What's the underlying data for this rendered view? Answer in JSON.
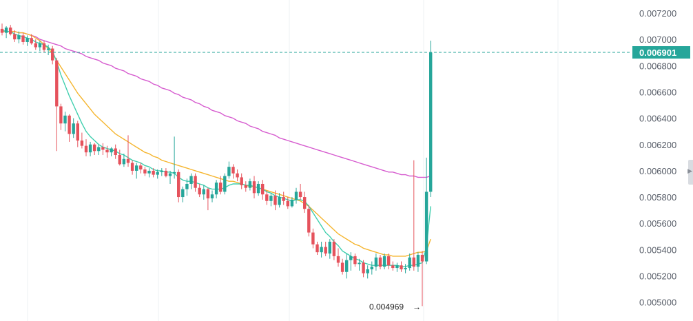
{
  "chart_data": {
    "type": "candlestick",
    "ylim": [
      0.00496,
      0.00724
    ],
    "y_ticks": [
      "0.007200",
      "0.007000",
      "0.006800",
      "0.006600",
      "0.006400",
      "0.006200",
      "0.006000",
      "0.005800",
      "0.005600",
      "0.005400",
      "0.005200",
      "0.005000"
    ],
    "last_price": "0.006901",
    "low_label": "0.004969",
    "low_value": 0.004969,
    "colors": {
      "up": "#26a69a",
      "down": "#e5525c",
      "tag": "#26a69a",
      "ma_fast": "#3fcfae",
      "ma_mid": "#f5b52e",
      "ma_slow": "#d65ccf",
      "grid": "#eef0f3"
    },
    "candles": [
      [
        0.00708,
        0.00712,
        0.00703,
        0.00705
      ],
      [
        0.00705,
        0.0071,
        0.00701,
        0.00709
      ],
      [
        0.00709,
        0.00711,
        0.00703,
        0.00704
      ],
      [
        0.00704,
        0.00707,
        0.00698,
        0.007
      ],
      [
        0.007,
        0.00706,
        0.00697,
        0.00703
      ],
      [
        0.00703,
        0.00705,
        0.00696,
        0.00698
      ],
      [
        0.00698,
        0.00703,
        0.00695,
        0.00701
      ],
      [
        0.00701,
        0.00704,
        0.00696,
        0.00697
      ],
      [
        0.00697,
        0.007,
        0.00692,
        0.00694
      ],
      [
        0.00694,
        0.00699,
        0.00691,
        0.00697
      ],
      [
        0.00697,
        0.00699,
        0.0069,
        0.00692
      ],
      [
        0.00692,
        0.00696,
        0.00688,
        0.00693
      ],
      [
        0.00693,
        0.00695,
        0.00681,
        0.00684
      ],
      [
        0.00684,
        0.00686,
        0.00615,
        0.00649
      ],
      [
        0.00649,
        0.00651,
        0.00631,
        0.00636
      ],
      [
        0.00636,
        0.00645,
        0.0063,
        0.00642
      ],
      [
        0.00642,
        0.00643,
        0.00622,
        0.00628
      ],
      [
        0.00628,
        0.0064,
        0.00625,
        0.00636
      ],
      [
        0.00636,
        0.00638,
        0.00618,
        0.00623
      ],
      [
        0.00623,
        0.00629,
        0.00617,
        0.00619
      ],
      [
        0.00619,
        0.00624,
        0.00611,
        0.00614
      ],
      [
        0.00614,
        0.00622,
        0.00611,
        0.0062
      ],
      [
        0.0062,
        0.00621,
        0.00612,
        0.00615
      ],
      [
        0.00615,
        0.0062,
        0.00612,
        0.00618
      ],
      [
        0.00618,
        0.00621,
        0.00612,
        0.00616
      ],
      [
        0.00616,
        0.00619,
        0.0061,
        0.00614
      ],
      [
        0.00614,
        0.00618,
        0.00611,
        0.00617
      ],
      [
        0.00617,
        0.0062,
        0.00609,
        0.00612
      ],
      [
        0.00612,
        0.00616,
        0.00604,
        0.00605
      ],
      [
        0.00605,
        0.00613,
        0.00603,
        0.00609
      ],
      [
        0.00609,
        0.00627,
        0.00603,
        0.00606
      ],
      [
        0.00606,
        0.00608,
        0.00597,
        0.006
      ],
      [
        0.006,
        0.00606,
        0.00594,
        0.00604
      ],
      [
        0.00604,
        0.00606,
        0.00598,
        0.00601
      ],
      [
        0.00601,
        0.00603,
        0.00596,
        0.00598
      ],
      [
        0.00598,
        0.00602,
        0.00595,
        0.006
      ],
      [
        0.006,
        0.00602,
        0.00595,
        0.00597
      ],
      [
        0.00597,
        0.00601,
        0.00594,
        0.00599
      ],
      [
        0.00599,
        0.00602,
        0.00596,
        0.006
      ],
      [
        0.006,
        0.00602,
        0.00595,
        0.00596
      ],
      [
        0.00596,
        0.006,
        0.0059,
        0.00598
      ],
      [
        0.00598,
        0.00626,
        0.00594,
        0.00599
      ],
      [
        0.00599,
        0.00601,
        0.00576,
        0.0058
      ],
      [
        0.0058,
        0.00588,
        0.00576,
        0.00586
      ],
      [
        0.00586,
        0.00594,
        0.00581,
        0.0059
      ],
      [
        0.0059,
        0.00598,
        0.00586,
        0.00596
      ],
      [
        0.00596,
        0.00598,
        0.00584,
        0.00587
      ],
      [
        0.00587,
        0.0059,
        0.0058,
        0.00582
      ],
      [
        0.00582,
        0.00589,
        0.00578,
        0.00586
      ],
      [
        0.00586,
        0.00587,
        0.0057,
        0.00579
      ],
      [
        0.00579,
        0.00585,
        0.00576,
        0.00582
      ],
      [
        0.00582,
        0.00593,
        0.00579,
        0.00591
      ],
      [
        0.00591,
        0.00596,
        0.00582,
        0.00584
      ],
      [
        0.00584,
        0.00598,
        0.00582,
        0.00596
      ],
      [
        0.00596,
        0.00607,
        0.00594,
        0.00603
      ],
      [
        0.00603,
        0.00605,
        0.00594,
        0.00598
      ],
      [
        0.00598,
        0.00601,
        0.00592,
        0.00595
      ],
      [
        0.00595,
        0.00598,
        0.00586,
        0.00589
      ],
      [
        0.00589,
        0.00592,
        0.00584,
        0.00587
      ],
      [
        0.00587,
        0.00594,
        0.00585,
        0.00592
      ],
      [
        0.00592,
        0.00596,
        0.00579,
        0.00583
      ],
      [
        0.00583,
        0.00592,
        0.00581,
        0.0059
      ],
      [
        0.0059,
        0.00593,
        0.00578,
        0.00582
      ],
      [
        0.00582,
        0.00585,
        0.00574,
        0.00577
      ],
      [
        0.00577,
        0.00583,
        0.00573,
        0.00581
      ],
      [
        0.00581,
        0.00585,
        0.0057,
        0.00574
      ],
      [
        0.00574,
        0.00583,
        0.00572,
        0.0058
      ],
      [
        0.0058,
        0.00584,
        0.00574,
        0.00577
      ],
      [
        0.00577,
        0.0058,
        0.00571,
        0.00573
      ],
      [
        0.00573,
        0.0058,
        0.00572,
        0.00578
      ],
      [
        0.00578,
        0.00587,
        0.00575,
        0.00584
      ],
      [
        0.00584,
        0.0059,
        0.00578,
        0.0058
      ],
      [
        0.0058,
        0.00584,
        0.00568,
        0.00571
      ],
      [
        0.00571,
        0.00574,
        0.0055,
        0.00553
      ],
      [
        0.00553,
        0.00556,
        0.00541,
        0.00544
      ],
      [
        0.00544,
        0.00546,
        0.00536,
        0.00538
      ],
      [
        0.00538,
        0.00546,
        0.00534,
        0.00542
      ],
      [
        0.00542,
        0.00546,
        0.00535,
        0.00537
      ],
      [
        0.00537,
        0.00548,
        0.00533,
        0.00546
      ],
      [
        0.00546,
        0.00548,
        0.00532,
        0.00535
      ],
      [
        0.00535,
        0.00541,
        0.00527,
        0.0053
      ],
      [
        0.0053,
        0.00533,
        0.00521,
        0.00523
      ],
      [
        0.00523,
        0.00537,
        0.00518,
        0.00532
      ],
      [
        0.00532,
        0.00538,
        0.00524,
        0.00535
      ],
      [
        0.00535,
        0.00537,
        0.00527,
        0.00529
      ],
      [
        0.00529,
        0.00533,
        0.00524,
        0.0053
      ],
      [
        0.0053,
        0.00532,
        0.00519,
        0.00522
      ],
      [
        0.00522,
        0.00528,
        0.00518,
        0.00525
      ],
      [
        0.00525,
        0.00531,
        0.00521,
        0.00527
      ],
      [
        0.00527,
        0.00537,
        0.00524,
        0.00534
      ],
      [
        0.00534,
        0.00536,
        0.00525,
        0.00527
      ],
      [
        0.00527,
        0.00537,
        0.00525,
        0.00535
      ],
      [
        0.00535,
        0.00537,
        0.00525,
        0.00528
      ],
      [
        0.00528,
        0.00531,
        0.00524,
        0.00526
      ],
      [
        0.00526,
        0.0053,
        0.00523,
        0.00528
      ],
      [
        0.00528,
        0.00531,
        0.00523,
        0.00525
      ],
      [
        0.00525,
        0.00529,
        0.00522,
        0.00526
      ],
      [
        0.00526,
        0.00537,
        0.00524,
        0.00534
      ],
      [
        0.00534,
        0.00608,
        0.00524,
        0.00527
      ],
      [
        0.00527,
        0.00538,
        0.00523,
        0.00536
      ],
      [
        0.00536,
        0.00539,
        0.00497,
        0.00531
      ],
      [
        0.00531,
        0.0061,
        0.00529,
        0.00584
      ],
      [
        0.00584,
        0.00699,
        0.0058,
        0.0069
      ]
    ],
    "ma_fast": [
      0.00707,
      0.00706,
      0.00706,
      0.00704,
      0.00703,
      0.00702,
      0.00701,
      0.007,
      0.00698,
      0.00697,
      0.00696,
      0.00694,
      0.00691,
      0.00683,
      0.00673,
      0.00665,
      0.00657,
      0.0065,
      0.00643,
      0.00636,
      0.0063,
      0.00626,
      0.00623,
      0.0062,
      0.00618,
      0.00617,
      0.00616,
      0.00615,
      0.00613,
      0.00612,
      0.0061,
      0.00608,
      0.00607,
      0.00606,
      0.00604,
      0.00603,
      0.00601,
      0.006,
      0.006,
      0.00599,
      0.00599,
      0.00598,
      0.00595,
      0.00593,
      0.00592,
      0.00592,
      0.00591,
      0.0059,
      0.00589,
      0.00587,
      0.00586,
      0.00586,
      0.00586,
      0.00587,
      0.00589,
      0.0059,
      0.0059,
      0.0059,
      0.00589,
      0.00589,
      0.00588,
      0.00587,
      0.00586,
      0.00584,
      0.00583,
      0.00581,
      0.0058,
      0.00579,
      0.00578,
      0.00577,
      0.00578,
      0.00578,
      0.00577,
      0.00573,
      0.00568,
      0.00563,
      0.00558,
      0.00553,
      0.0055,
      0.00546,
      0.00543,
      0.00539,
      0.00537,
      0.00535,
      0.00533,
      0.00532,
      0.0053,
      0.00529,
      0.00528,
      0.00528,
      0.00528,
      0.00528,
      0.00528,
      0.00528,
      0.00528,
      0.00527,
      0.00527,
      0.00528,
      0.00528,
      0.00529,
      0.0053,
      0.00542,
      0.00573
    ],
    "ma_mid": [
      0.00706,
      0.00706,
      0.00706,
      0.00706,
      0.00705,
      0.00705,
      0.00704,
      0.00703,
      0.00701,
      0.00699,
      0.00696,
      0.00693,
      0.00689,
      0.00684,
      0.00679,
      0.00674,
      0.00669,
      0.00664,
      0.00659,
      0.00655,
      0.00651,
      0.00647,
      0.00643,
      0.0064,
      0.00637,
      0.00634,
      0.00631,
      0.00628,
      0.00626,
      0.00624,
      0.00622,
      0.0062,
      0.00618,
      0.00616,
      0.00614,
      0.00613,
      0.00611,
      0.0061,
      0.00608,
      0.00607,
      0.00606,
      0.00605,
      0.00604,
      0.00603,
      0.00602,
      0.00601,
      0.006,
      0.00599,
      0.00598,
      0.00597,
      0.00596,
      0.00595,
      0.00594,
      0.00593,
      0.00592,
      0.00592,
      0.00591,
      0.0059,
      0.00589,
      0.00588,
      0.00588,
      0.00587,
      0.00586,
      0.00585,
      0.00584,
      0.00583,
      0.00582,
      0.00581,
      0.0058,
      0.00579,
      0.00578,
      0.00577,
      0.00575,
      0.00573,
      0.0057,
      0.00567,
      0.00564,
      0.00561,
      0.00558,
      0.00555,
      0.00552,
      0.0055,
      0.00548,
      0.00546,
      0.00544,
      0.00543,
      0.00541,
      0.0054,
      0.00539,
      0.00538,
      0.00537,
      0.00536,
      0.00536,
      0.00535,
      0.00535,
      0.00535,
      0.00535,
      0.00536,
      0.00537,
      0.00538,
      0.00538,
      0.00539,
      0.00548
    ],
    "ma_slow": [
      0.00706,
      0.00706,
      0.00706,
      0.00706,
      0.00705,
      0.00705,
      0.00704,
      0.00703,
      0.00702,
      0.007,
      0.00699,
      0.00698,
      0.00697,
      0.00696,
      0.00695,
      0.00693,
      0.00692,
      0.00691,
      0.0069,
      0.00689,
      0.00687,
      0.00686,
      0.00685,
      0.00684,
      0.00682,
      0.00681,
      0.0068,
      0.00678,
      0.00677,
      0.00676,
      0.00674,
      0.00673,
      0.00672,
      0.0067,
      0.00669,
      0.00668,
      0.00666,
      0.00665,
      0.00663,
      0.00662,
      0.00661,
      0.00659,
      0.00658,
      0.00656,
      0.00655,
      0.00654,
      0.00652,
      0.00651,
      0.00649,
      0.00648,
      0.00646,
      0.00645,
      0.00644,
      0.00642,
      0.00641,
      0.0064,
      0.00638,
      0.00637,
      0.00636,
      0.00634,
      0.00633,
      0.00632,
      0.0063,
      0.00629,
      0.00628,
      0.00627,
      0.00625,
      0.00624,
      0.00623,
      0.00622,
      0.00621,
      0.0062,
      0.00619,
      0.00618,
      0.00617,
      0.00616,
      0.00615,
      0.00614,
      0.00613,
      0.00612,
      0.00611,
      0.0061,
      0.00609,
      0.00608,
      0.00607,
      0.00606,
      0.00605,
      0.00604,
      0.00603,
      0.00602,
      0.00601,
      0.006,
      0.00599,
      0.00599,
      0.00598,
      0.00597,
      0.00597,
      0.00596,
      0.00596,
      0.00595,
      0.00595,
      0.00595,
      0.00596
    ]
  }
}
